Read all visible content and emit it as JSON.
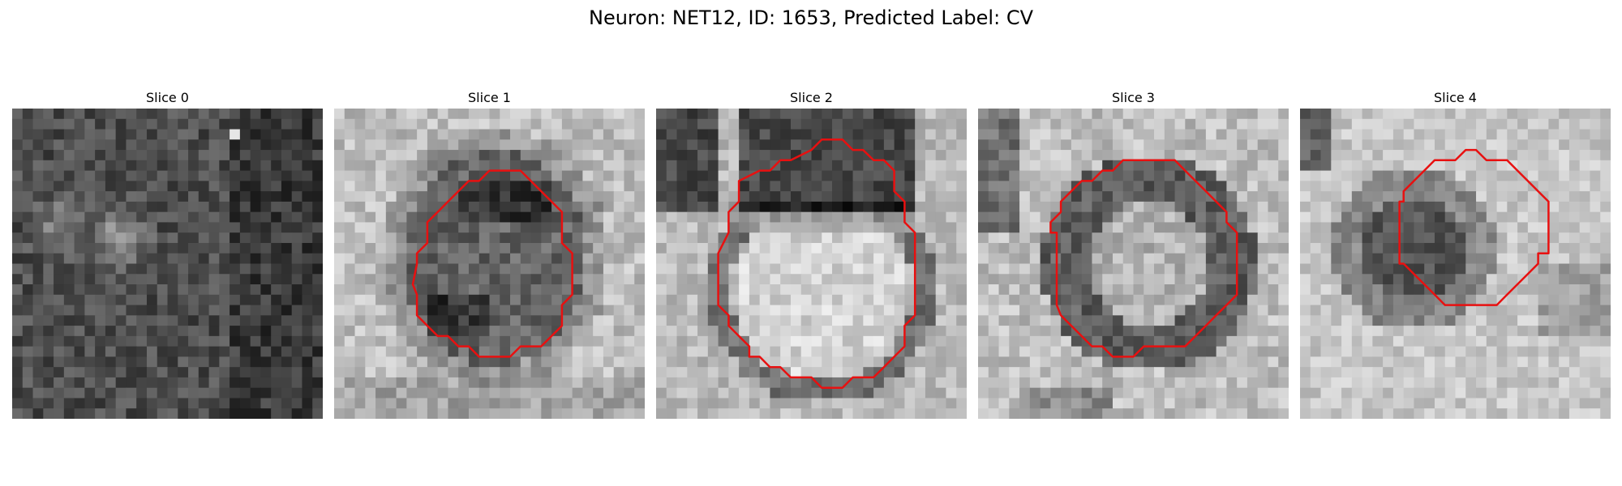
{
  "figure": {
    "title": "Neuron: NET12, ID: 1653, Predicted Label: CV"
  },
  "panels": [
    {
      "title": "Slice 0",
      "image": "dark-noisy-grayscale-patch",
      "contour_color": "#e81010",
      "has_contour": false,
      "grid": 30
    },
    {
      "title": "Slice 1",
      "image": "grayscale-em-patch-with-dark-vesicle",
      "contour_color": "#e81010",
      "has_contour": true,
      "grid": 30,
      "contour": [
        [
          13,
          7
        ],
        [
          12,
          8
        ],
        [
          11,
          9
        ],
        [
          10,
          10
        ],
        [
          9,
          11
        ],
        [
          9,
          13
        ],
        [
          8,
          14
        ],
        [
          8,
          15
        ],
        [
          7.6,
          17
        ],
        [
          8,
          18
        ],
        [
          8,
          20
        ],
        [
          9,
          21
        ],
        [
          10,
          22
        ],
        [
          11,
          22
        ],
        [
          12,
          23
        ],
        [
          13,
          23
        ],
        [
          14,
          24
        ],
        [
          15,
          24
        ],
        [
          17,
          24
        ],
        [
          18,
          23
        ],
        [
          20,
          23
        ],
        [
          21,
          22
        ],
        [
          22,
          21
        ],
        [
          22,
          19
        ],
        [
          23,
          18
        ],
        [
          23,
          14
        ],
        [
          22,
          13
        ],
        [
          22,
          10
        ],
        [
          21,
          9
        ],
        [
          20,
          8
        ],
        [
          19,
          7
        ],
        [
          18,
          6
        ],
        [
          16,
          6
        ],
        [
          15,
          6
        ],
        [
          14,
          7
        ]
      ]
    },
    {
      "title": "Slice 2",
      "image": "grayscale-em-patch-with-bright-vesicle",
      "contour_color": "#e81010",
      "has_contour": true,
      "grid": 30,
      "contour": [
        [
          15,
          4
        ],
        [
          13,
          5
        ],
        [
          12,
          5
        ],
        [
          11,
          6
        ],
        [
          10,
          6
        ],
        [
          8,
          7
        ],
        [
          8,
          9
        ],
        [
          7,
          10
        ],
        [
          7,
          12
        ],
        [
          6,
          14
        ],
        [
          6,
          19
        ],
        [
          7,
          20
        ],
        [
          7,
          21
        ],
        [
          8,
          22
        ],
        [
          9,
          23
        ],
        [
          9,
          24
        ],
        [
          10,
          24
        ],
        [
          11,
          25
        ],
        [
          12,
          25
        ],
        [
          13,
          26
        ],
        [
          15,
          26
        ],
        [
          16,
          27
        ],
        [
          18,
          27
        ],
        [
          19,
          26
        ],
        [
          21,
          26
        ],
        [
          22,
          25
        ],
        [
          23,
          24
        ],
        [
          24,
          23
        ],
        [
          24,
          21
        ],
        [
          25,
          20
        ],
        [
          25,
          12
        ],
        [
          24,
          11
        ],
        [
          24,
          9
        ],
        [
          23,
          8
        ],
        [
          23,
          6
        ],
        [
          22,
          5
        ],
        [
          21,
          5
        ],
        [
          20,
          4
        ],
        [
          19,
          4
        ],
        [
          18,
          3
        ],
        [
          16,
          3
        ]
      ]
    },
    {
      "title": "Slice 3",
      "image": "grayscale-em-patch-with-ring-vesicle",
      "contour_color": "#e81010",
      "has_contour": true,
      "grid": 30,
      "contour": [
        [
          14,
          5
        ],
        [
          13,
          6
        ],
        [
          12,
          6
        ],
        [
          11,
          7
        ],
        [
          10,
          7
        ],
        [
          9,
          8
        ],
        [
          8,
          9
        ],
        [
          8,
          10
        ],
        [
          7,
          11
        ],
        [
          7,
          12
        ],
        [
          7.6,
          12
        ],
        [
          7.6,
          19
        ],
        [
          8,
          20
        ],
        [
          9,
          21
        ],
        [
          10,
          22
        ],
        [
          11,
          23
        ],
        [
          12,
          23
        ],
        [
          13,
          24
        ],
        [
          15,
          24
        ],
        [
          16,
          23
        ],
        [
          20,
          23
        ],
        [
          21,
          22
        ],
        [
          22,
          21
        ],
        [
          23,
          20
        ],
        [
          24,
          19
        ],
        [
          25,
          18
        ],
        [
          25,
          12
        ],
        [
          24,
          11
        ],
        [
          24,
          10
        ],
        [
          23,
          9
        ],
        [
          22,
          8
        ],
        [
          21,
          7
        ],
        [
          20,
          6
        ],
        [
          19,
          5
        ],
        [
          17,
          5
        ]
      ]
    },
    {
      "title": "Slice 4",
      "image": "grayscale-em-patch-with-small-vesicle",
      "contour_color": "#e81010",
      "has_contour": true,
      "grid": 30,
      "contour": [
        [
          13,
          5
        ],
        [
          12,
          6
        ],
        [
          11,
          7
        ],
        [
          10,
          8
        ],
        [
          10,
          9
        ],
        [
          9.6,
          9
        ],
        [
          9.6,
          15
        ],
        [
          10,
          15
        ],
        [
          11,
          16
        ],
        [
          12,
          17
        ],
        [
          13,
          18
        ],
        [
          14,
          19
        ],
        [
          19,
          19
        ],
        [
          20,
          18
        ],
        [
          21,
          17
        ],
        [
          22,
          16
        ],
        [
          23,
          15
        ],
        [
          23,
          14
        ],
        [
          24,
          14
        ],
        [
          24,
          11
        ],
        [
          24,
          9
        ],
        [
          23,
          8
        ],
        [
          22,
          7
        ],
        [
          21,
          6
        ],
        [
          20,
          5
        ],
        [
          19,
          5
        ],
        [
          18,
          5
        ],
        [
          17,
          4
        ],
        [
          16,
          4
        ],
        [
          15,
          5
        ],
        [
          14,
          5
        ]
      ]
    }
  ]
}
